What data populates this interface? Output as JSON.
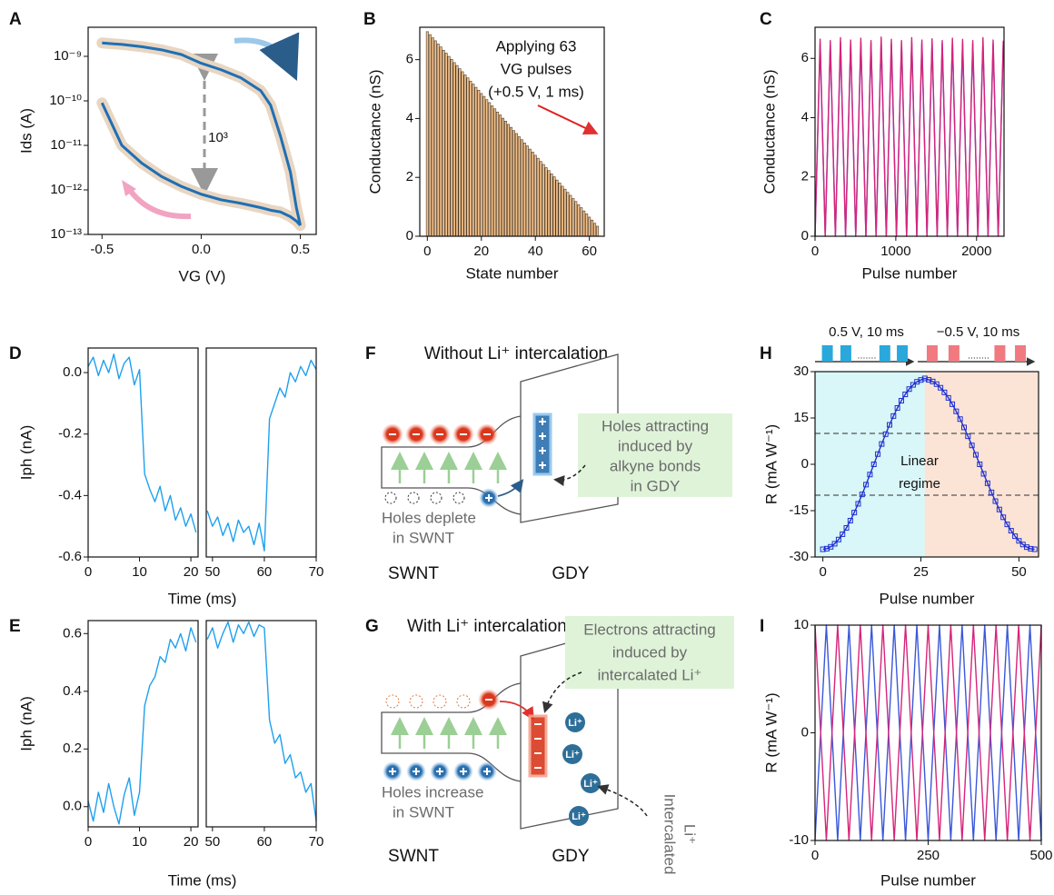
{
  "chart_data": [
    {
      "type": "line",
      "label": "A",
      "ylabel": "Ids (A)",
      "xlabel": "VG (V)",
      "ylog": true,
      "x": [
        -0.5,
        -0.4,
        -0.3,
        -0.2,
        -0.1,
        0,
        0.1,
        0.2,
        0.3,
        0.35,
        0.4,
        0.45,
        0.48,
        0.5
      ],
      "series": [
        {
          "color": "#1f6fb4",
          "band_color": "#e8d6c2",
          "values": [
            2e-09,
            1.85e-09,
            1.65e-09,
            1.4e-09,
            1.1e-09,
            7e-10,
            5e-10,
            3.3e-10,
            1.7e-10,
            8e-11,
            1.6e-11,
            2.5e-12,
            4e-13,
            1.6e-13
          ]
        },
        {
          "color": "#1f6fb4",
          "band_color": "#e8d6c2",
          "values": [
            9e-11,
            1e-11,
            4e-12,
            2e-12,
            1.2e-12,
            8e-13,
            6e-13,
            5e-13,
            4e-13,
            3.5e-13,
            3.2e-13,
            2.5e-13,
            2e-13,
            1.6e-13
          ]
        }
      ],
      "xlim": [
        -0.57,
        0.58
      ],
      "xticks": [
        -0.5,
        {
          "value": 0,
          "label": "0.0"
        },
        0.5
      ],
      "ylim": [
        1e-13,
        4.5e-09
      ],
      "yticks": [
        {
          "value": 1e-13,
          "label": "10⁻¹³"
        },
        {
          "value": 1e-12,
          "label": "10⁻¹²"
        },
        {
          "value": 1e-11,
          "label": "10⁻¹¹"
        },
        {
          "value": 1e-10,
          "label": "10⁻¹⁰"
        },
        {
          "value": 1e-09,
          "label": "10⁻⁹"
        }
      ],
      "annotation": [
        "10³"
      ]
    },
    {
      "type": "bar",
      "label": "B",
      "ylabel": "Conductance (nS)",
      "xlabel": "State number",
      "color": "#f5c28a",
      "edgecolor": "#4a3a2a",
      "x": [
        0,
        1,
        2,
        3,
        4,
        5,
        6,
        7,
        8,
        9,
        10,
        11,
        12,
        13,
        14,
        15,
        16,
        17,
        18,
        19,
        20,
        21,
        22,
        23,
        24,
        25,
        26,
        27,
        28,
        29,
        30,
        31,
        32,
        33,
        34,
        35,
        36,
        37,
        38,
        39,
        40,
        41,
        42,
        43,
        44,
        45,
        46,
        47,
        48,
        49,
        50,
        51,
        52,
        53,
        54,
        55,
        56,
        57,
        58,
        59,
        60,
        61,
        62,
        63
      ],
      "values": [
        6.95,
        6.85,
        6.74,
        6.64,
        6.53,
        6.43,
        6.32,
        6.22,
        6.11,
        6.01,
        5.9,
        5.8,
        5.69,
        5.59,
        5.48,
        5.38,
        5.27,
        5.17,
        5.06,
        4.96,
        4.85,
        4.75,
        4.64,
        4.54,
        4.43,
        4.33,
        4.22,
        4.12,
        4.01,
        3.91,
        3.8,
        3.7,
        3.59,
        3.49,
        3.38,
        3.28,
        3.17,
        3.07,
        2.96,
        2.86,
        2.75,
        2.65,
        2.54,
        2.44,
        2.33,
        2.23,
        2.12,
        2.02,
        1.91,
        1.81,
        1.7,
        1.6,
        1.49,
        1.39,
        1.28,
        1.18,
        1.07,
        0.97,
        0.86,
        0.76,
        0.65,
        0.55,
        0.44,
        0.34
      ],
      "xlim": [
        -2.8,
        65.5
      ],
      "xticks": [
        0,
        20,
        40,
        60
      ],
      "ylim": [
        0,
        7.1
      ],
      "yticks": [
        0,
        2,
        4,
        6
      ],
      "annotation": [
        "Applying 63",
        "VG pulses",
        "(+0.5 V, 1 ms)"
      ]
    },
    {
      "type": "line",
      "label": "C",
      "ylabel": "Conductance (nS)",
      "xlabel": "Pulse number",
      "x": [
        0,
        63,
        126,
        189,
        252,
        315,
        378,
        441,
        504,
        567,
        630,
        693,
        756,
        819,
        882,
        945,
        1008,
        1071,
        1134,
        1197,
        1260,
        1323,
        1386,
        1449,
        1512,
        1575,
        1638,
        1701,
        1764,
        1827,
        1890,
        1953,
        2016,
        2079,
        2142,
        2205,
        2268,
        2331
      ],
      "series": [
        {
          "color": "#3a58d8",
          "values": [
            0,
            6.5,
            0,
            6.5,
            0,
            6.55,
            0,
            6.5,
            0,
            6.55,
            0,
            6.5,
            0,
            6.6,
            0,
            6.5,
            0,
            6.5,
            0,
            6.55,
            0,
            6.5,
            0,
            6.55,
            0,
            6.5,
            0,
            6.55,
            0,
            6.5,
            0,
            6.5,
            0,
            6.55,
            0,
            6.5,
            0,
            6.5
          ]
        },
        {
          "color": "#d6247a",
          "values": [
            0,
            6.65,
            0,
            6.6,
            0,
            6.7,
            0,
            6.62,
            0,
            6.68,
            0,
            6.6,
            0,
            6.72,
            0,
            6.64,
            0,
            6.6,
            0,
            6.7,
            0,
            6.62,
            0,
            6.66,
            0,
            6.6,
            0,
            6.68,
            0,
            6.64,
            0,
            6.6,
            0,
            6.7,
            0,
            6.62,
            0,
            6.6
          ]
        }
      ],
      "xlim": [
        0,
        2340
      ],
      "xticks": [
        0,
        1000,
        2000
      ],
      "ylim": [
        0,
        7.05
      ],
      "yticks": [
        0,
        2,
        4,
        6
      ]
    },
    {
      "type": "line",
      "label": "D",
      "ylabel": "Iph (nA)",
      "xlabel": "Time (ms)",
      "color": "#1ea0ee",
      "ylim": [
        -0.6,
        0.08
      ],
      "yticks": [
        -0.6,
        -0.4,
        -0.2,
        {
          "value": 0,
          "label": "0.0"
        }
      ],
      "segments": [
        {
          "xlim": [
            0,
            21.4
          ],
          "xticks": [
            0,
            10,
            20
          ],
          "x": [
            0,
            1,
            2,
            3,
            4,
            5,
            6,
            7,
            8,
            9,
            10,
            11,
            12,
            13,
            14,
            15,
            16,
            17,
            18,
            19,
            20,
            21
          ],
          "values": [
            0.02,
            0.05,
            -0.01,
            0.04,
            0,
            0.06,
            -0.02,
            0.03,
            0.05,
            -0.04,
            0.01,
            -0.33,
            -0.38,
            -0.42,
            -0.37,
            -0.45,
            -0.4,
            -0.48,
            -0.44,
            -0.5,
            -0.46,
            -0.52
          ]
        },
        {
          "xlim": [
            48.8,
            70
          ],
          "xticks": [
            50,
            60,
            70
          ],
          "x": [
            49,
            50,
            51,
            52,
            53,
            54,
            55,
            56,
            57,
            58,
            59,
            60,
            61,
            62,
            63,
            64,
            65,
            66,
            67,
            68,
            69,
            70
          ],
          "values": [
            -0.45,
            -0.5,
            -0.47,
            -0.53,
            -0.49,
            -0.55,
            -0.48,
            -0.52,
            -0.5,
            -0.56,
            -0.49,
            -0.58,
            -0.15,
            -0.1,
            -0.05,
            -0.08,
            0,
            -0.03,
            0.02,
            -0.01,
            0.04,
            0.01
          ]
        }
      ]
    },
    {
      "type": "line",
      "label": "E",
      "ylabel": "Iph (nA)",
      "xlabel": "Time (ms)",
      "color": "#1ea0ee",
      "ylim": [
        -0.07,
        0.645
      ],
      "yticks": [
        {
          "value": 0,
          "label": "0.0"
        },
        0.2,
        0.4,
        0.6
      ],
      "segments": [
        {
          "xlim": [
            0,
            21.4
          ],
          "xticks": [
            0,
            10,
            20
          ],
          "x": [
            0,
            1,
            2,
            3,
            4,
            5,
            6,
            7,
            8,
            9,
            10,
            11,
            12,
            13,
            14,
            15,
            16,
            17,
            18,
            19,
            20,
            21
          ],
          "values": [
            0.02,
            -0.05,
            0.05,
            -0.02,
            0.08,
            0,
            -0.06,
            0.04,
            0.1,
            -0.03,
            0.05,
            0.35,
            0.42,
            0.45,
            0.52,
            0.5,
            0.58,
            0.55,
            0.6,
            0.54,
            0.62,
            0.57
          ]
        },
        {
          "xlim": [
            48.8,
            70
          ],
          "xticks": [
            50,
            60,
            70
          ],
          "x": [
            49,
            50,
            51,
            52,
            53,
            54,
            55,
            56,
            57,
            58,
            59,
            60,
            61,
            62,
            63,
            64,
            65,
            66,
            67,
            68,
            69,
            70
          ],
          "values": [
            0.58,
            0.62,
            0.55,
            0.6,
            0.64,
            0.57,
            0.63,
            0.6,
            0.64,
            0.59,
            0.63,
            0.62,
            0.3,
            0.22,
            0.25,
            0.15,
            0.18,
            0.1,
            0.12,
            0.05,
            0.08,
            -0.05
          ]
        }
      ]
    },
    {
      "type": "line",
      "label": "H",
      "ylabel": "R (mA W⁻¹)",
      "xlabel": "Pulse number",
      "markers": true,
      "x": [
        0,
        1,
        2,
        3,
        4,
        5,
        6,
        7,
        8,
        9,
        10,
        11,
        12,
        13,
        14,
        15,
        16,
        17,
        18,
        19,
        20,
        21,
        22,
        23,
        24,
        25,
        26,
        27,
        28,
        29,
        30,
        31,
        32,
        33,
        34,
        35,
        36,
        37,
        38,
        39,
        40,
        41,
        42,
        43,
        44,
        45,
        46,
        47,
        48,
        49,
        50,
        51,
        52,
        53,
        54
      ],
      "series": [
        {
          "color": "#1f2fd0",
          "values": [
            -27.5,
            -27.3,
            -26.7,
            -25.71,
            -24.35,
            -22.63,
            -20.58,
            -18.24,
            -15.62,
            -12.78,
            -9.75,
            -6.58,
            -3.31,
            0,
            3.31,
            6.58,
            9.75,
            12.78,
            15.62,
            18.24,
            20.58,
            22.63,
            24.35,
            25.71,
            26.7,
            27.3,
            27.8,
            27.33,
            26.81,
            25.96,
            24.78,
            23.28,
            21.5,
            19.45,
            17.15,
            14.63,
            11.93,
            9.08,
            6.12,
            3.08,
            0,
            -3.08,
            -6.12,
            -9.08,
            -11.93,
            -14.63,
            -17.15,
            -19.45,
            -21.5,
            -23.28,
            -24.78,
            -25.96,
            -26.81,
            -27.33,
            -27.5
          ]
        }
      ],
      "xlim": [
        -2,
        55
      ],
      "xticks": [
        0,
        25,
        50
      ],
      "ylim": [
        -30,
        30
      ],
      "yticks": [
        -30,
        -15,
        0,
        15,
        30
      ],
      "regions": [
        {
          "xlim": [
            -2,
            26
          ],
          "color": "#d9f6f8"
        },
        {
          "xlim": [
            26,
            55
          ],
          "color": "#fbe4d6"
        }
      ],
      "hlines": [
        10,
        -10
      ],
      "annotation": [
        "Linear",
        "regime"
      ],
      "pulse_labels": [
        "0.5 V, 10 ms",
        "−0.5 V, 10 ms"
      ],
      "pulse_colors": [
        "#2aa8dc",
        "#f07a80"
      ]
    },
    {
      "type": "line",
      "label": "I",
      "ylabel": "R (mA W⁻¹)",
      "xlabel": "Pulse number",
      "x": [
        0,
        25,
        50,
        75,
        100,
        125,
        150,
        175,
        200,
        225,
        250,
        275,
        300,
        325,
        350,
        375,
        400,
        425,
        450,
        475,
        500
      ],
      "series": [
        {
          "color": "#3a58d8",
          "values": [
            -10,
            10,
            -10,
            10,
            -10,
            10,
            -10,
            10,
            -10,
            10,
            -10,
            10,
            -10,
            10,
            -10,
            10,
            -10,
            10,
            -10,
            10,
            -10
          ]
        },
        {
          "color": "#d6247a",
          "values": [
            10,
            -10,
            10,
            -10,
            10,
            -10,
            10,
            -10,
            10,
            -10,
            10,
            -10,
            10,
            -10,
            10,
            -10,
            10,
            -10,
            10,
            -10,
            10
          ]
        }
      ],
      "xlim": [
        0,
        500
      ],
      "xticks": [
        0,
        250,
        500
      ],
      "ylim": [
        -10,
        10
      ],
      "yticks": [
        -10,
        0,
        10
      ]
    }
  ],
  "diagrams": {
    "F": {
      "label": "F",
      "title": "Without Li⁺ intercalation",
      "box_text": [
        "Holes attracting",
        "induced by",
        "alkyne bonds",
        "in GDY"
      ],
      "note": [
        "Holes deplete",
        "in SWNT"
      ],
      "layers": [
        "SWNT",
        "GDY"
      ]
    },
    "G": {
      "label": "G",
      "title": "With Li⁺ intercalation",
      "box_text": [
        "Electrons attracting",
        "induced by",
        "intercalated Li⁺"
      ],
      "note": [
        "Holes increase",
        "in SWNT"
      ],
      "ion_label": [
        "Intercalated",
        "Li⁺"
      ],
      "ions": [
        "Li⁺",
        "Li⁺",
        "Li⁺",
        "Li⁺"
      ],
      "layers": [
        "SWNT",
        "GDY"
      ]
    }
  }
}
